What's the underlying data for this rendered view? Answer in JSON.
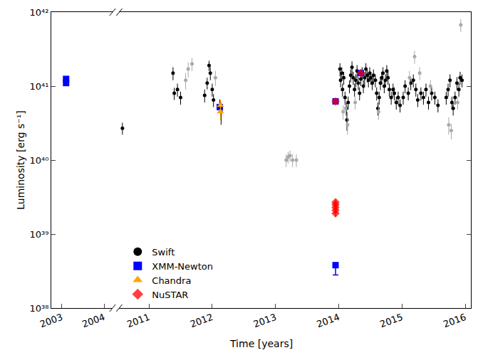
{
  "chart_data": {
    "type": "scatter",
    "x_label": "Time [years]",
    "y_label": "Luminosity [erg s⁻¹]",
    "log": "y",
    "grid": false,
    "legend": "lower left",
    "xlim": [
      [
        2002.75,
        2004.2
      ],
      [
        2010.53,
        2016.09
      ]
    ],
    "xticks": [
      [
        2003,
        2004
      ],
      [
        2011,
        2012,
        2013,
        2014,
        2015,
        2016
      ]
    ],
    "ylim": [
      1e+38,
      1e+42
    ],
    "yticks": [
      {
        "value": 1e+38,
        "label": "10³⁸"
      },
      {
        "value": 1e+39,
        "label": "10³⁹"
      },
      {
        "value": 1e+40,
        "label": "10⁴⁰"
      },
      {
        "value": 1e+41,
        "label": "10⁴¹"
      },
      {
        "value": 1e+42,
        "label": "10⁴²"
      }
    ],
    "series": [
      {
        "name": "Swift",
        "color": "#000000",
        "marker": "circle",
        "x": [
          2010.58,
          2011.38,
          2011.4,
          2011.45,
          2011.5,
          2011.58,
          2011.62,
          2011.68,
          2011.88,
          2011.92,
          2011.95,
          2011.97,
          2012.0,
          2012.02,
          2012.05,
          2012.12,
          2012.14,
          2013.17,
          2013.2,
          2013.23,
          2013.27,
          2013.33,
          2014.02,
          2014.03,
          2014.05,
          2014.06,
          2014.07,
          2014.08,
          2014.1,
          2014.11,
          2014.12,
          2014.13,
          2014.14,
          2014.15,
          2014.17,
          2014.19,
          2014.21,
          2014.23,
          2014.25,
          2014.26,
          2014.27,
          2014.29,
          2014.31,
          2014.33,
          2014.35,
          2014.37,
          2014.39,
          2014.41,
          2014.43,
          2014.45,
          2014.47,
          2014.49,
          2014.51,
          2014.53,
          2014.55,
          2014.58,
          2014.6,
          2014.62,
          2014.63,
          2014.64,
          2014.66,
          2014.68,
          2014.7,
          2014.72,
          2014.74,
          2014.76,
          2014.78,
          2014.8,
          2014.83,
          2014.86,
          2014.88,
          2014.91,
          2014.94,
          2014.97,
          2015.02,
          2015.05,
          2015.1,
          2015.12,
          2015.14,
          2015.18,
          2015.2,
          2015.22,
          2015.25,
          2015.28,
          2015.3,
          2015.34,
          2015.38,
          2015.42,
          2015.45,
          2015.47,
          2015.52,
          2015.57,
          2015.7,
          2015.73,
          2015.74,
          2015.76,
          2015.78,
          2015.79,
          2015.81,
          2015.84,
          2015.87,
          2015.88,
          2015.9,
          2015.92,
          2015.93,
          2015.95
        ],
        "values": [
          2.7e+40,
          1.5e+41,
          8e+40,
          9e+40,
          7e+40,
          1.2e+41,
          1.7e+41,
          2e+41,
          7.5e+40,
          1.1e+41,
          1.9e+41,
          1.5e+41,
          9e+40,
          6.5e+40,
          1.3e+41,
          5.5e+40,
          4.5e+40,
          1e+40,
          1.1e+40,
          1.15e+40,
          1e+40,
          1e+40,
          1.7e+41,
          1.2e+41,
          1.5e+41,
          9e+40,
          4.5e+40,
          1.3e+41,
          7e+40,
          5e+40,
          5e+40,
          3.5e+40,
          3e+40,
          6e+40,
          1e+41,
          1.4e+41,
          1.8e+41,
          1.3e+41,
          9e+40,
          6e+40,
          1.2e+41,
          1.6e+41,
          1.1e+41,
          8e+40,
          1.25e+41,
          1.5e+41,
          1e+41,
          1.3e+41,
          1.7e+41,
          1.4e+41,
          1.2e+41,
          1.5e+41,
          1.3e+41,
          1.1e+41,
          1.4e+41,
          1.2e+41,
          8e+40,
          5e+40,
          4.5e+40,
          7e+40,
          1.1e+41,
          1.3e+41,
          1.5e+41,
          1e+41,
          1.2e+41,
          1.6e+41,
          1.3e+41,
          9e+40,
          7e+40,
          9e+40,
          8e+40,
          6e+40,
          7e+40,
          5.5e+40,
          7e+40,
          1e+41,
          8e+40,
          1.3e+41,
          1.1e+41,
          1.2e+41,
          2.5e+41,
          9e+40,
          6.5e+40,
          1.5e+41,
          8e+40,
          7e+40,
          9e+40,
          6e+40,
          1e+41,
          8e+40,
          7e+40,
          5.5e+40,
          7e+40,
          9e+40,
          3e+40,
          1.2e+41,
          2.5e+40,
          6e+40,
          5e+40,
          7e+40,
          1.1e+41,
          6e+40,
          9e+40,
          1.3e+41,
          6.7e+41,
          1.2e+41
        ],
        "errors": [
          5e+39,
          3e+40,
          1.5e+40,
          1.8e+40,
          1.4e+40,
          3e+40,
          4e+40,
          4e+40,
          1.5e+40,
          2e+40,
          3e+40,
          3e+40,
          1.8e+40,
          1.3e+40,
          3e+40,
          1.1e+40,
          1.5e+40,
          2e+39,
          2e+39,
          2e+39,
          2e+39,
          2e+39,
          3.4e+40,
          2.4e+40,
          3e+40,
          1.8e+40,
          1e+40,
          2.6e+40,
          1.4e+40,
          1e+40,
          1e+40,
          1e+40,
          8e+39,
          1.2e+40,
          2e+40,
          2.8e+40,
          3.6e+40,
          2.6e+40,
          1.8e+40,
          1.2e+40,
          2.4e+40,
          3.2e+40,
          2.2e+40,
          1.6e+40,
          2.5e+40,
          3e+40,
          2e+40,
          2.6e+40,
          3.4e+40,
          2.8e+40,
          2.4e+40,
          3e+40,
          2.6e+40,
          2.2e+40,
          2.8e+40,
          2.4e+40,
          1.6e+40,
          1e+40,
          1e+40,
          1.4e+40,
          2.2e+40,
          2.6e+40,
          3e+40,
          2e+40,
          2.4e+40,
          3.2e+40,
          2.6e+40,
          1.8e+40,
          1.4e+40,
          1.8e+40,
          1.6e+40,
          1.2e+40,
          1.4e+40,
          1.1e+40,
          1.4e+40,
          2e+40,
          1.6e+40,
          3e+40,
          2.2e+40,
          2.4e+40,
          5e+40,
          1.8e+40,
          1.3e+40,
          3e+40,
          1.6e+40,
          1.4e+40,
          1.8e+40,
          1.2e+40,
          2e+40,
          1.6e+40,
          1.4e+40,
          1.1e+40,
          1.4e+40,
          1.8e+40,
          8e+39,
          2.4e+40,
          6e+39,
          1.2e+40,
          1e+40,
          1.4e+40,
          2.2e+40,
          1.2e+40,
          1.8e+40,
          2.6e+40,
          1.3e+41,
          2.4e+40
        ],
        "colors": [
          "#000000",
          "#000000",
          "#000000",
          "#000000",
          "#000000",
          "#a9a9a9",
          "#a9a9a9",
          "#a9a9a9",
          "#000000",
          "#000000",
          "#000000",
          "#000000",
          "#000000",
          "#000000",
          "#a9a9a9",
          "#000000",
          "#000000",
          "#a9a9a9",
          "#a9a9a9",
          "#a9a9a9",
          "#a9a9a9",
          "#a9a9a9",
          "#000000",
          "#000000",
          "#000000",
          "#000000",
          "#a9a9a9",
          "#000000",
          "#000000",
          "#a9a9a9",
          "#000000",
          "#000000",
          "#a9a9a9",
          "#000000",
          "#000000",
          "#000000",
          "#000000",
          "#000000",
          "#000000",
          "#a9a9a9",
          "#000000",
          "#000000",
          "#000000",
          "#000000",
          "#000000",
          "#000000",
          "#000000",
          "#000000",
          "#000000",
          "#000000",
          "#000000",
          "#000000",
          "#000000",
          "#000000",
          "#000000",
          "#000000",
          "#000000",
          "#000000",
          "#a9a9a9",
          "#000000",
          "#000000",
          "#000000",
          "#000000",
          "#000000",
          "#000000",
          "#000000",
          "#000000",
          "#000000",
          "#000000",
          "#000000",
          "#000000",
          "#000000",
          "#000000",
          "#000000",
          "#000000",
          "#000000",
          "#000000",
          "#a9a9a9",
          "#000000",
          "#000000",
          "#a9a9a9",
          "#000000",
          "#000000",
          "#a9a9a9",
          "#000000",
          "#000000",
          "#000000",
          "#000000",
          "#a9a9a9",
          "#000000",
          "#000000",
          "#000000",
          "#000000",
          "#000000",
          "#a9a9a9",
          "#000000",
          "#a9a9a9",
          "#000000",
          "#000000",
          "#000000",
          "#000000",
          "#a9a9a9",
          "#000000",
          "#000000",
          "#a9a9a9",
          "#000000"
        ]
      },
      {
        "name": "XMM-Newton",
        "color": "#0000ff",
        "marker": "square",
        "x": [
          2003.1,
          2003.1,
          2012.12,
          2013.95,
          2013.95,
          2014.35
        ],
        "values": [
          1.25e+41,
          1.1e+41,
          5.2e+40,
          6.2e+40,
          3.8e+38,
          1.5e+41
        ],
        "error_minus": [
          0,
          0,
          0,
          0,
          1e+38,
          0
        ],
        "error_plus": [
          0,
          0,
          0,
          0,
          0,
          0
        ]
      },
      {
        "name": "Chandra",
        "color": "#ffa500",
        "marker": "triangle",
        "x": [
          2012.13,
          2012.13
        ],
        "values": [
          5.5e+40,
          4.5e+40
        ],
        "errors": [
          1e+40,
          1e+40
        ]
      },
      {
        "name": "NuSTAR",
        "color": "#ff0000",
        "marker": "diamond",
        "x": [
          2013.95,
          2013.95,
          2013.95,
          2013.95,
          2013.95,
          2013.95,
          2014.35
        ],
        "values": [
          6.2e+40,
          2.7e+39,
          2.5e+39,
          2.3e+39,
          2.1e+39,
          1.9e+39,
          1.5e+41
        ],
        "errors": [
          0,
          2e+38,
          2e+38,
          2e+38,
          2e+38,
          2e+38,
          0
        ]
      }
    ]
  }
}
